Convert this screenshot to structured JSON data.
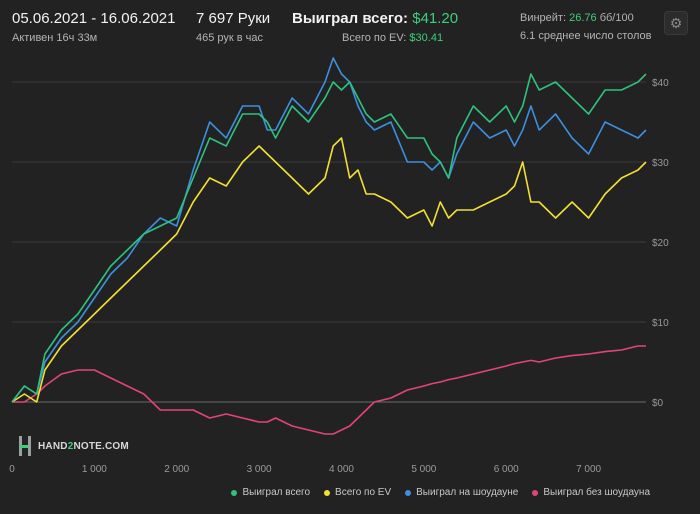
{
  "header": {
    "date_range": "05.06.2021 - 16.06.2021",
    "active_time": "Активен 16ч 33м",
    "hands": "7 697 Руки",
    "hands_per_hour": "465 рук в час",
    "won_total_label": "Выиграл всего:",
    "won_total_value": "$41.20",
    "ev_total_label": "Всего по EV:",
    "ev_total_value": "$30.41",
    "winrate_label": "Винрейт:",
    "winrate_value": "26.76",
    "winrate_unit": "бб/100",
    "avg_tables": "6.1 среднее число столов",
    "settings_icon": "gear-icon"
  },
  "logo": {
    "pre": "HAND",
    "mid": "2",
    "post": "NOTE.COM"
  },
  "chart_data": {
    "type": "line",
    "xlim": [
      0,
      7697
    ],
    "ylim": [
      -6,
      44
    ],
    "x_ticks": [
      0,
      1000,
      2000,
      3000,
      4000,
      5000,
      6000,
      7000
    ],
    "x_tick_labels": [
      "0",
      "1 000",
      "2 000",
      "3 000",
      "4 000",
      "5 000",
      "6 000",
      "7 000"
    ],
    "y_ticks": [
      0,
      10,
      20,
      30,
      40
    ],
    "y_tick_labels": [
      "$0",
      "$10",
      "$20",
      "$30",
      "$40"
    ],
    "grid": "horizontal",
    "legend_position": "bottom-right",
    "series": [
      {
        "name": "Выиграл всего",
        "color": "#2ec27e",
        "x": [
          0,
          150,
          300,
          400,
          600,
          800,
          1000,
          1200,
          1400,
          1600,
          1800,
          2000,
          2200,
          2400,
          2600,
          2800,
          3000,
          3100,
          3200,
          3400,
          3600,
          3800,
          3900,
          4000,
          4100,
          4200,
          4300,
          4400,
          4600,
          4800,
          5000,
          5100,
          5200,
          5300,
          5400,
          5600,
          5800,
          6000,
          6100,
          6200,
          6300,
          6400,
          6600,
          6800,
          7000,
          7200,
          7400,
          7600,
          7697
        ],
        "y": [
          0,
          2,
          1,
          6,
          9,
          11,
          14,
          17,
          19,
          21,
          22,
          23,
          28,
          33,
          32,
          36,
          36,
          35,
          33,
          37,
          35,
          38,
          40,
          39,
          40,
          38,
          36,
          35,
          36,
          33,
          33,
          31,
          30,
          28,
          33,
          37,
          35,
          37,
          35,
          37,
          41,
          39,
          40,
          38,
          36,
          39,
          39,
          40,
          41
        ]
      },
      {
        "name": "Всего по EV",
        "color": "#f2e033",
        "x": [
          0,
          150,
          300,
          400,
          600,
          800,
          1000,
          1200,
          1400,
          1600,
          1800,
          2000,
          2200,
          2400,
          2600,
          2800,
          3000,
          3100,
          3200,
          3400,
          3600,
          3800,
          3900,
          4000,
          4100,
          4200,
          4300,
          4400,
          4600,
          4800,
          5000,
          5100,
          5200,
          5300,
          5400,
          5600,
          5800,
          6000,
          6100,
          6200,
          6300,
          6400,
          6600,
          6800,
          7000,
          7200,
          7400,
          7600,
          7697
        ],
        "y": [
          0,
          1,
          0,
          4,
          7,
          9,
          11,
          13,
          15,
          17,
          19,
          21,
          25,
          28,
          27,
          30,
          32,
          31,
          30,
          28,
          26,
          28,
          32,
          33,
          28,
          29,
          26,
          26,
          25,
          23,
          24,
          22,
          25,
          23,
          24,
          24,
          25,
          26,
          27,
          30,
          25,
          25,
          23,
          25,
          23,
          26,
          28,
          29,
          30
        ]
      },
      {
        "name": "Выиграл на шоудауне",
        "color": "#3d8fe0",
        "x": [
          0,
          150,
          300,
          400,
          600,
          800,
          1000,
          1200,
          1400,
          1600,
          1800,
          2000,
          2200,
          2400,
          2600,
          2800,
          3000,
          3100,
          3200,
          3400,
          3600,
          3800,
          3900,
          4000,
          4100,
          4200,
          4300,
          4400,
          4600,
          4800,
          5000,
          5100,
          5200,
          5300,
          5400,
          5600,
          5800,
          6000,
          6100,
          6200,
          6300,
          6400,
          6600,
          6800,
          7000,
          7200,
          7400,
          7600,
          7697
        ],
        "y": [
          0,
          2,
          1,
          5,
          8,
          10,
          13,
          16,
          18,
          21,
          23,
          22,
          29,
          35,
          33,
          37,
          37,
          34,
          34,
          38,
          36,
          40,
          43,
          41,
          40,
          37,
          35,
          34,
          35,
          30,
          30,
          29,
          30,
          28,
          31,
          35,
          33,
          34,
          32,
          34,
          37,
          34,
          36,
          33,
          31,
          35,
          34,
          33,
          34
        ]
      },
      {
        "name": "Выиграл без шоудауна",
        "color": "#e2447a",
        "x": [
          0,
          150,
          300,
          400,
          600,
          800,
          1000,
          1200,
          1400,
          1600,
          1800,
          2000,
          2200,
          2400,
          2600,
          2800,
          3000,
          3100,
          3200,
          3400,
          3600,
          3800,
          3900,
          4000,
          4100,
          4200,
          4300,
          4400,
          4600,
          4800,
          5000,
          5100,
          5200,
          5300,
          5400,
          5600,
          5800,
          6000,
          6100,
          6200,
          6300,
          6400,
          6600,
          6800,
          7000,
          7200,
          7400,
          7600,
          7697
        ],
        "y": [
          0,
          0,
          1,
          2,
          3.5,
          4,
          4,
          3,
          2,
          1,
          -1,
          -1,
          -1,
          -2,
          -1.5,
          -2,
          -2.5,
          -2.5,
          -2,
          -3,
          -3.5,
          -4,
          -4,
          -3.5,
          -3,
          -2,
          -1,
          0,
          0.5,
          1.5,
          2,
          2.3,
          2.5,
          2.8,
          3,
          3.5,
          4,
          4.5,
          4.8,
          5,
          5.2,
          5,
          5.5,
          5.8,
          6,
          6.3,
          6.5,
          7,
          7
        ]
      }
    ]
  }
}
